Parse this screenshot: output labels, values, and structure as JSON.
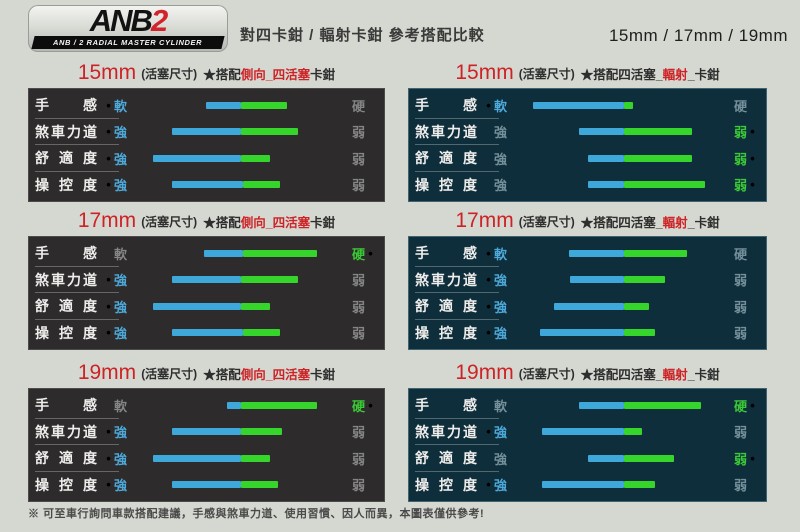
{
  "header": {
    "logo": {
      "anb": "ANB",
      "two": "2",
      "subtitle": "ANB / 2 RADIAL MASTER CYLINDER"
    },
    "title": "對四卡鉗 / 輻射卡鉗 參考搭配比較",
    "sizes": "15mm / 17mm / 19mm"
  },
  "colors": {
    "page_bg": "#d5d8d1",
    "panel_dark": "#2d2b2b",
    "panel_teal": "#0f2e3b",
    "bar_blue": "#3fa8da",
    "bar_green": "#36d52b",
    "accent_red": "#cd2327",
    "text_blue": "#4da9da",
    "text_green": "#3cc937"
  },
  "chart_data": {
    "type": "bar",
    "title": "對四卡鉗 / 輻射卡鉗 參考搭配比較",
    "note": "each row is a slider bar on a 0-100 scale between the left term (軟/強) and right term (硬/弱); blue segment runs start→mid, green segment mid→end; active marks the emphasized side",
    "panels": [
      {
        "id": "15mm-side-4piston",
        "theme": "dark",
        "title": {
          "size": "15mm",
          "unit": "(活塞尺寸)",
          "pre": "★搭配",
          "highlight": "側向_四活塞",
          "post": "卡鉗"
        },
        "rows": [
          {
            "label": "手感",
            "left": {
              "text": "軟",
              "active": true
            },
            "right": {
              "text": "硬",
              "active": false
            },
            "bar": {
              "start": 31,
              "mid": 51,
              "end": 77
            }
          },
          {
            "label": "煞車力道",
            "left": {
              "text": "強",
              "active": true
            },
            "right": {
              "text": "弱",
              "active": false
            },
            "bar": {
              "start": 12,
              "mid": 51,
              "end": 83
            }
          },
          {
            "label": "舒適度",
            "left": {
              "text": "強",
              "active": true
            },
            "right": {
              "text": "弱",
              "active": false
            },
            "bar": {
              "start": 1,
              "mid": 51,
              "end": 67
            }
          },
          {
            "label": "操控度",
            "left": {
              "text": "強",
              "active": true
            },
            "right": {
              "text": "弱",
              "active": false
            },
            "bar": {
              "start": 12,
              "mid": 52,
              "end": 73
            }
          }
        ]
      },
      {
        "id": "15mm-4piston-radial",
        "theme": "teal",
        "title": {
          "size": "15mm",
          "unit": "(活塞尺寸)",
          "pre": "★搭配四活塞_",
          "highlight": "輻射",
          "post": "_卡鉗"
        },
        "rows": [
          {
            "label": "手感",
            "left": {
              "text": "軟",
              "active": true
            },
            "right": {
              "text": "硬",
              "active": false
            },
            "bar": {
              "start": 1,
              "mid": 52,
              "end": 57
            }
          },
          {
            "label": "煞車力道",
            "left": {
              "text": "強",
              "active": false
            },
            "right": {
              "text": "弱",
              "active": true
            },
            "bar": {
              "start": 27,
              "mid": 52,
              "end": 90
            }
          },
          {
            "label": "舒適度",
            "left": {
              "text": "強",
              "active": false
            },
            "right": {
              "text": "弱",
              "active": true
            },
            "bar": {
              "start": 32,
              "mid": 52,
              "end": 90
            }
          },
          {
            "label": "操控度",
            "left": {
              "text": "強",
              "active": false
            },
            "right": {
              "text": "弱",
              "active": true
            },
            "bar": {
              "start": 32,
              "mid": 52,
              "end": 97
            }
          }
        ]
      },
      {
        "id": "17mm-side-4piston",
        "theme": "dark",
        "title": {
          "size": "17mm",
          "unit": "(活塞尺寸)",
          "pre": "★搭配",
          "highlight": "側向_四活塞",
          "post": "卡鉗"
        },
        "rows": [
          {
            "label": "手感",
            "left": {
              "text": "軟",
              "active": false
            },
            "right": {
              "text": "硬",
              "active": true
            },
            "bar": {
              "start": 30,
              "mid": 52,
              "end": 94
            }
          },
          {
            "label": "煞車力道",
            "left": {
              "text": "強",
              "active": true
            },
            "right": {
              "text": "弱",
              "active": false
            },
            "bar": {
              "start": 12,
              "mid": 51,
              "end": 83
            }
          },
          {
            "label": "舒適度",
            "left": {
              "text": "強",
              "active": true
            },
            "right": {
              "text": "弱",
              "active": false
            },
            "bar": {
              "start": 1,
              "mid": 51,
              "end": 67
            }
          },
          {
            "label": "操控度",
            "left": {
              "text": "強",
              "active": true
            },
            "right": {
              "text": "弱",
              "active": false
            },
            "bar": {
              "start": 12,
              "mid": 52,
              "end": 73
            }
          }
        ]
      },
      {
        "id": "17mm-4piston-radial",
        "theme": "teal",
        "title": {
          "size": "17mm",
          "unit": "(活塞尺寸)",
          "pre": "★搭配四活塞_",
          "highlight": "輻射",
          "post": "_卡鉗"
        },
        "rows": [
          {
            "label": "手感",
            "left": {
              "text": "軟",
              "active": true
            },
            "right": {
              "text": "硬",
              "active": false
            },
            "bar": {
              "start": 21,
              "mid": 52,
              "end": 87
            }
          },
          {
            "label": "煞車力道",
            "left": {
              "text": "強",
              "active": true
            },
            "right": {
              "text": "弱",
              "active": false
            },
            "bar": {
              "start": 22,
              "mid": 52,
              "end": 75
            }
          },
          {
            "label": "舒適度",
            "left": {
              "text": "強",
              "active": true
            },
            "right": {
              "text": "弱",
              "active": false
            },
            "bar": {
              "start": 13,
              "mid": 52,
              "end": 66
            }
          },
          {
            "label": "操控度",
            "left": {
              "text": "強",
              "active": true
            },
            "right": {
              "text": "弱",
              "active": false
            },
            "bar": {
              "start": 5,
              "mid": 52,
              "end": 69
            }
          }
        ]
      },
      {
        "id": "19mm-side-4piston",
        "theme": "dark",
        "title": {
          "size": "19mm",
          "unit": "(活塞尺寸)",
          "pre": "★搭配",
          "highlight": "側向_四活塞",
          "post": "卡鉗"
        },
        "rows": [
          {
            "label": "手感",
            "left": {
              "text": "軟",
              "active": false
            },
            "right": {
              "text": "硬",
              "active": true
            },
            "bar": {
              "start": 43,
              "mid": 51,
              "end": 94
            }
          },
          {
            "label": "煞車力道",
            "left": {
              "text": "強",
              "active": true
            },
            "right": {
              "text": "弱",
              "active": false
            },
            "bar": {
              "start": 12,
              "mid": 51,
              "end": 74
            }
          },
          {
            "label": "舒適度",
            "left": {
              "text": "強",
              "active": true
            },
            "right": {
              "text": "弱",
              "active": false
            },
            "bar": {
              "start": 1,
              "mid": 51,
              "end": 67
            }
          },
          {
            "label": "操控度",
            "left": {
              "text": "強",
              "active": true
            },
            "right": {
              "text": "弱",
              "active": false
            },
            "bar": {
              "start": 12,
              "mid": 51,
              "end": 72
            }
          }
        ]
      },
      {
        "id": "19mm-4piston-radial",
        "theme": "teal",
        "title": {
          "size": "19mm",
          "unit": "(活塞尺寸)",
          "pre": "★搭配四活塞_",
          "highlight": "輻射",
          "post": "_卡鉗"
        },
        "rows": [
          {
            "label": "手感",
            "left": {
              "text": "軟",
              "active": false
            },
            "right": {
              "text": "硬",
              "active": true
            },
            "bar": {
              "start": 27,
              "mid": 52,
              "end": 95
            }
          },
          {
            "label": "煞車力道",
            "left": {
              "text": "強",
              "active": true
            },
            "right": {
              "text": "弱",
              "active": false
            },
            "bar": {
              "start": 6,
              "mid": 52,
              "end": 62
            }
          },
          {
            "label": "舒適度",
            "left": {
              "text": "強",
              "active": false
            },
            "right": {
              "text": "弱",
              "active": true
            },
            "bar": {
              "start": 32,
              "mid": 52,
              "end": 80
            }
          },
          {
            "label": "操控度",
            "left": {
              "text": "強",
              "active": true
            },
            "right": {
              "text": "弱",
              "active": false
            },
            "bar": {
              "start": 6,
              "mid": 52,
              "end": 69
            }
          }
        ]
      }
    ]
  },
  "footer": {
    "note": "※ 可至車行詢問車款搭配建議，手感與煞車力道、使用習慣、因人而異，本圖表僅供參考!"
  }
}
